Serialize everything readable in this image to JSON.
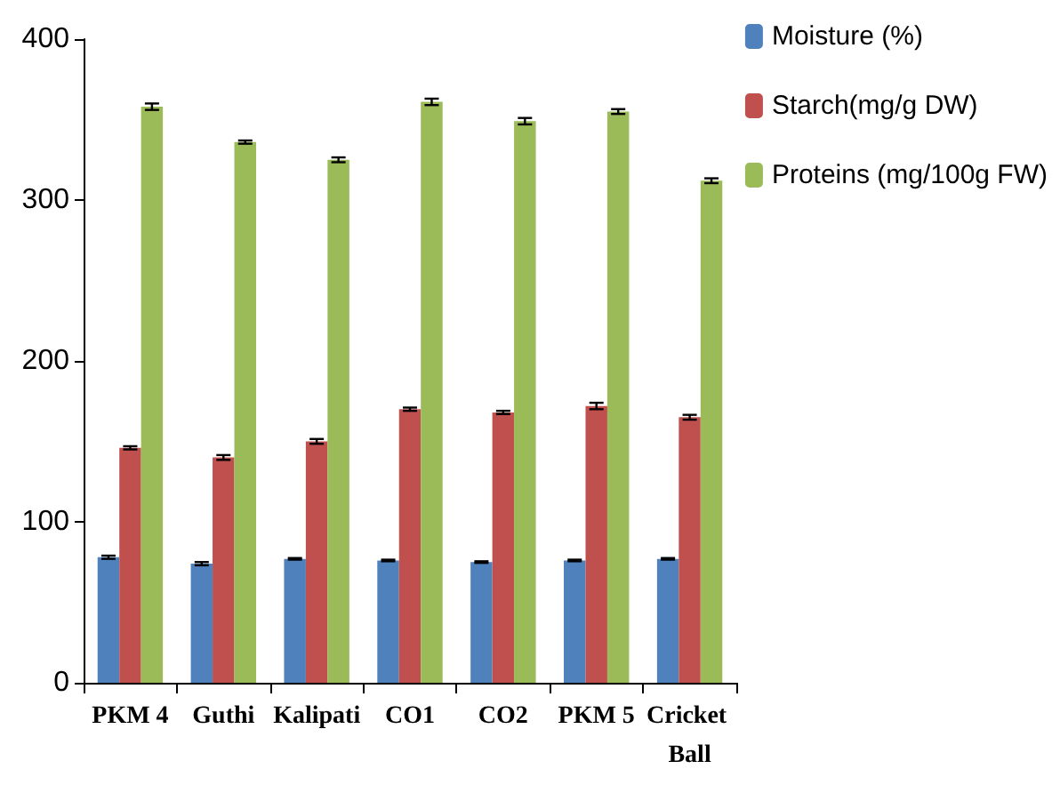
{
  "chart_data": {
    "type": "bar",
    "categories": [
      "PKM 4",
      "Guthi",
      "Kalipati",
      "CO1",
      "CO2",
      "PKM 5",
      "Cricket Ball"
    ],
    "series": [
      {
        "name": "Moisture (%)",
        "color": "#4f81bd",
        "values": [
          78,
          74,
          77,
          76,
          75,
          76,
          77
        ],
        "errors": [
          1,
          1,
          0.5,
          0.5,
          0.5,
          0.5,
          0.5
        ]
      },
      {
        "name": "Starch(mg/g DW)",
        "color": "#c0504d",
        "values": [
          146,
          140,
          150,
          170,
          168,
          172,
          165
        ],
        "errors": [
          1,
          1.5,
          1.5,
          1,
          1,
          2,
          1.5
        ]
      },
      {
        "name": "Proteins (mg/100g FW)",
        "color": "#9bbb59",
        "values": [
          358,
          336,
          325,
          361,
          349,
          355,
          312
        ],
        "errors": [
          2,
          1,
          1.5,
          2,
          2,
          1.5,
          1.5
        ]
      }
    ],
    "ylim": [
      0,
      400
    ],
    "yticks": [
      0,
      100,
      200,
      300,
      400
    ],
    "grid": false,
    "legend": "top right"
  }
}
